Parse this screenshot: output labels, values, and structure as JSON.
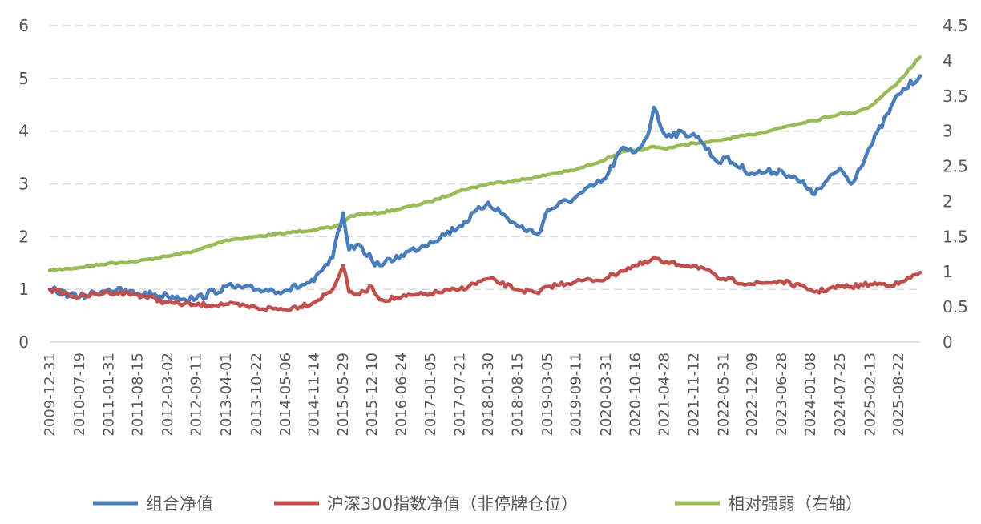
{
  "chart_data": {
    "type": "line",
    "title": "",
    "xlabel": "",
    "ylabel": "",
    "y_left": {
      "range": [
        0,
        6
      ],
      "ticks": [
        "0",
        "1",
        "2",
        "3",
        "4",
        "5",
        "6"
      ]
    },
    "y_right": {
      "range": [
        0,
        4.5
      ],
      "ticks": [
        "0",
        "0.5",
        "1",
        "1.5",
        "2",
        "2.5",
        "3",
        "3.5",
        "4",
        "4.5"
      ]
    },
    "grid": "horizontal dashed",
    "legend_position": "bottom",
    "x_tick_labels": [
      "2009-12-31",
      "2010-07-19",
      "2011-01-31",
      "2011-08-15",
      "2012-03-02",
      "2012-09-11",
      "2013-04-01",
      "2013-10-22",
      "2014-05-06",
      "2014-11-14",
      "2015-05-29",
      "2015-12-10",
      "2016-06-24",
      "2017-01-05",
      "2017-07-21",
      "2018-01-30",
      "2018-08-15",
      "2019-03-05",
      "2019-09-11",
      "2020-03-31",
      "2020-10-16",
      "2021-04-28",
      "2021-11-12",
      "2022-05-31",
      "2022-12-09",
      "2023-06-28",
      "2024-01-08",
      "2024-07-25",
      "2025-02-13",
      "2025-08-22"
    ],
    "x": [
      "2009-12-31",
      "2010-07-19",
      "2011-01-31",
      "2011-08-15",
      "2012-03-02",
      "2012-09-11",
      "2013-04-01",
      "2013-10-22",
      "2014-05-06",
      "2014-11-14",
      "2015-03-20",
      "2015-05-29",
      "2015-07-08",
      "2015-09-15",
      "2015-12-10",
      "2016-02-01",
      "2016-06-24",
      "2017-01-05",
      "2017-07-21",
      "2018-01-30",
      "2018-08-15",
      "2019-01-03",
      "2019-03-05",
      "2019-09-11",
      "2020-03-31",
      "2020-07-10",
      "2020-10-16",
      "2021-01-05",
      "2021-02-18",
      "2021-04-28",
      "2021-11-12",
      "2022-01-20",
      "2022-04-26",
      "2022-05-31",
      "2022-12-09",
      "2023-06-28",
      "2024-01-08",
      "2024-02-05",
      "2024-07-25",
      "2024-10-08",
      "2025-02-13",
      "2025-08-22",
      "2026-01-15"
    ],
    "series": [
      {
        "name": "组合净值",
        "axis": "left",
        "color": "#4a7ebb",
        "values": [
          1.0,
          0.85,
          1.0,
          0.92,
          0.88,
          0.82,
          1.05,
          1.0,
          0.98,
          1.15,
          1.6,
          2.45,
          1.75,
          1.85,
          1.55,
          1.45,
          1.65,
          1.9,
          2.2,
          2.65,
          2.2,
          2.05,
          2.5,
          2.75,
          3.1,
          3.65,
          3.6,
          3.9,
          4.45,
          3.95,
          3.95,
          3.75,
          3.4,
          3.5,
          3.2,
          3.25,
          2.9,
          2.8,
          3.3,
          3.0,
          3.7,
          4.7,
          5.05
        ]
      },
      {
        "name": "沪深300指数净值（非停牌仓位）",
        "axis": "left",
        "color": "#c0504d",
        "values": [
          1.0,
          0.85,
          0.95,
          0.9,
          0.75,
          0.7,
          0.72,
          0.65,
          0.62,
          0.75,
          1.0,
          1.45,
          0.95,
          0.9,
          1.05,
          0.8,
          0.85,
          0.92,
          1.0,
          1.2,
          1.0,
          0.92,
          1.05,
          1.15,
          1.2,
          1.35,
          1.45,
          1.5,
          1.6,
          1.5,
          1.45,
          1.4,
          1.2,
          1.2,
          1.1,
          1.15,
          1.0,
          0.95,
          1.05,
          1.05,
          1.1,
          1.1,
          1.32
        ]
      },
      {
        "name": "相对强弱（右轴）",
        "axis": "right",
        "color": "#9bbb59",
        "values": [
          1.02,
          1.06,
          1.12,
          1.15,
          1.22,
          1.3,
          1.45,
          1.5,
          1.55,
          1.6,
          1.63,
          1.7,
          1.78,
          1.82,
          1.83,
          1.84,
          1.9,
          2.0,
          2.15,
          2.25,
          2.3,
          2.35,
          2.38,
          2.45,
          2.6,
          2.7,
          2.72,
          2.75,
          2.78,
          2.75,
          2.83,
          2.83,
          2.87,
          2.88,
          2.95,
          3.05,
          3.15,
          3.15,
          3.25,
          3.25,
          3.35,
          3.7,
          4.05
        ]
      }
    ]
  }
}
